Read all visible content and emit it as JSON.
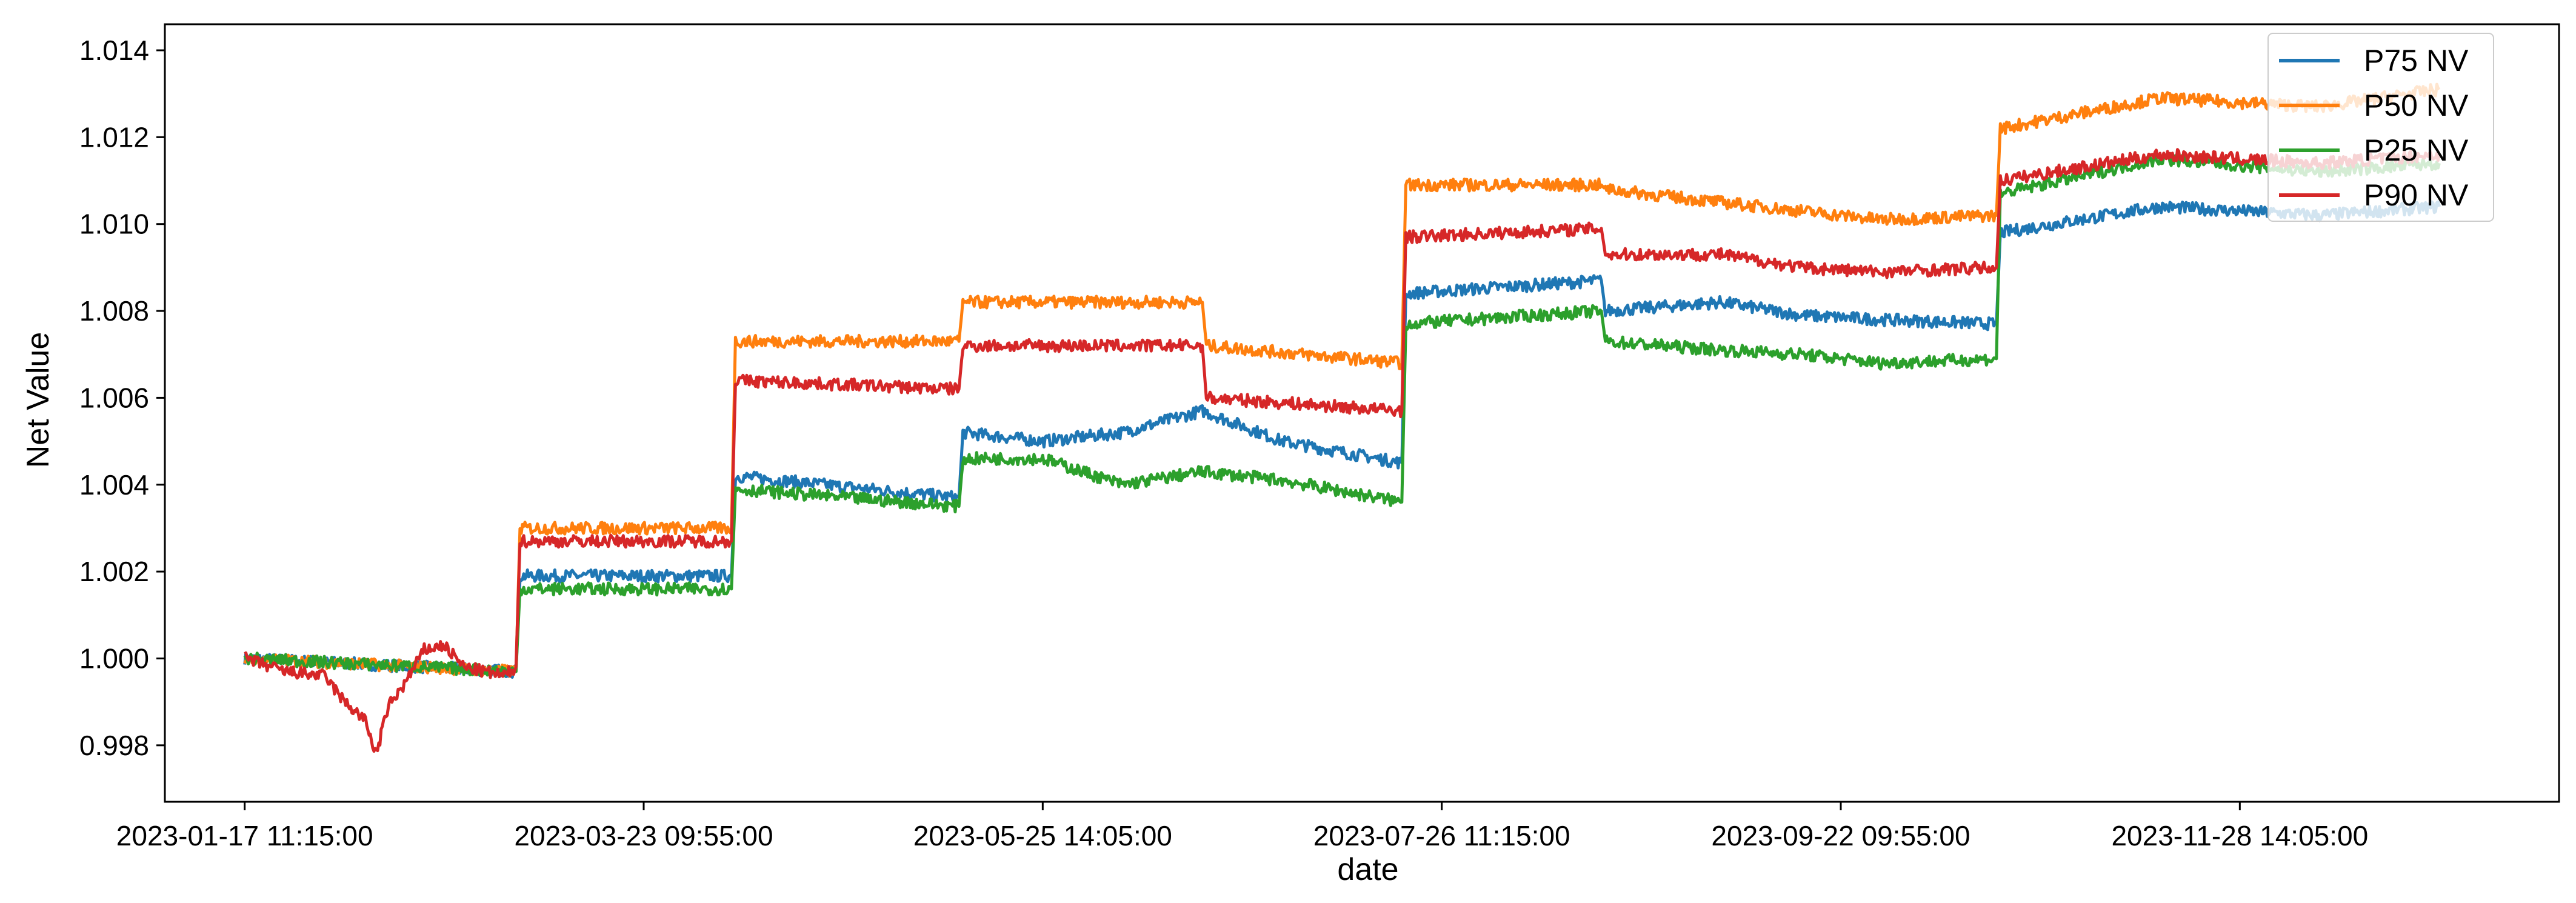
{
  "chart_data": {
    "type": "line",
    "title": "",
    "xlabel": "date",
    "ylabel": "Net Value",
    "x_tick_labels": [
      "2023-01-17 11:15:00",
      "2023-03-23 09:55:00",
      "2023-05-25 14:05:00",
      "2023-07-26 11:15:00",
      "2023-09-22 09:55:00",
      "2023-11-28 14:05:00"
    ],
    "y_tick_labels": [
      "0.998",
      "1.000",
      "1.002",
      "1.004",
      "1.006",
      "1.008",
      "1.010",
      "1.012",
      "1.014"
    ],
    "x_range": [
      -2,
      58
    ],
    "ylim": [
      0.9967,
      1.0146
    ],
    "grid": false,
    "legend_position": "top-right",
    "series": [
      {
        "name": "P75 NV",
        "color": "#1f77b4",
        "x": [
          0,
          6.8,
          6.9,
          12.2,
          12.3,
          17.9,
          18.0,
          20.0,
          22.0,
          24.0,
          26.0,
          29.0,
          29.1,
          34.0,
          34.1,
          37.0,
          39.0,
          41.0,
          43.9,
          44.0,
          48.0,
          52.0,
          55.0
        ],
        "values": [
          1.0,
          0.9997,
          1.0019,
          1.0019,
          1.0042,
          1.0037,
          1.0052,
          1.005,
          1.0052,
          1.0057,
          1.005,
          1.0045,
          1.0084,
          1.0087,
          1.008,
          1.0082,
          1.0079,
          1.0078,
          1.0077,
          1.0098,
          1.0104,
          1.0102,
          1.0104
        ]
      },
      {
        "name": "P50 NV",
        "color": "#ff7f0e",
        "x": [
          0,
          6.8,
          6.9,
          12.2,
          12.3,
          17.9,
          18.0,
          24.0,
          24.1,
          29.0,
          29.1,
          34.0,
          34.1,
          37.0,
          39.0,
          41.0,
          43.9,
          44.0,
          48.0,
          52.0,
          55.0
        ],
        "values": [
          1.0,
          0.9997,
          1.003,
          1.003,
          1.0073,
          1.0073,
          1.0082,
          1.0082,
          1.0072,
          1.0068,
          1.0109,
          1.0109,
          1.0108,
          1.0105,
          1.0103,
          1.0101,
          1.0102,
          1.0122,
          1.0129,
          1.0127,
          1.0131
        ]
      },
      {
        "name": "P25 NV",
        "color": "#2ca02c",
        "x": [
          0,
          6.8,
          6.9,
          12.2,
          12.3,
          17.9,
          18.0,
          20.0,
          22.0,
          24.0,
          26.0,
          29.0,
          29.1,
          34.0,
          34.1,
          37.0,
          39.0,
          41.0,
          43.9,
          44.0,
          48.0,
          52.0,
          55.0
        ],
        "values": [
          1.0,
          0.9997,
          1.0016,
          1.0016,
          1.0039,
          1.0035,
          1.0046,
          1.0046,
          1.004,
          1.0043,
          1.0041,
          1.0036,
          1.0077,
          1.008,
          1.0073,
          1.0071,
          1.007,
          1.0068,
          1.0069,
          1.0107,
          1.0115,
          1.0112,
          1.0114
        ]
      },
      {
        "name": "P90 NV",
        "color": "#d62728",
        "x": [
          0,
          1.0,
          2.0,
          2.5,
          3.0,
          3.3,
          3.6,
          4.0,
          4.5,
          5.0,
          5.5,
          6.0,
          6.5,
          6.8,
          6.9,
          12.2,
          12.3,
          17.9,
          18.0,
          24.0,
          24.1,
          29.0,
          29.1,
          34.0,
          34.1,
          37.0,
          39.0,
          41.0,
          43.9,
          44.0,
          48.0,
          52.0,
          55.0
        ],
        "values": [
          1.0,
          0.9997,
          0.9996,
          0.999,
          0.9986,
          0.9978,
          0.9989,
          0.9994,
          1.0002,
          1.0003,
          0.9998,
          0.9997,
          0.9996,
          0.9998,
          1.0027,
          1.0027,
          1.0064,
          1.0062,
          1.0072,
          1.0072,
          1.006,
          1.0057,
          1.0097,
          1.0099,
          1.0093,
          1.0093,
          1.009,
          1.0089,
          1.009,
          1.011,
          1.0116,
          1.0114,
          1.0116
        ]
      }
    ]
  }
}
